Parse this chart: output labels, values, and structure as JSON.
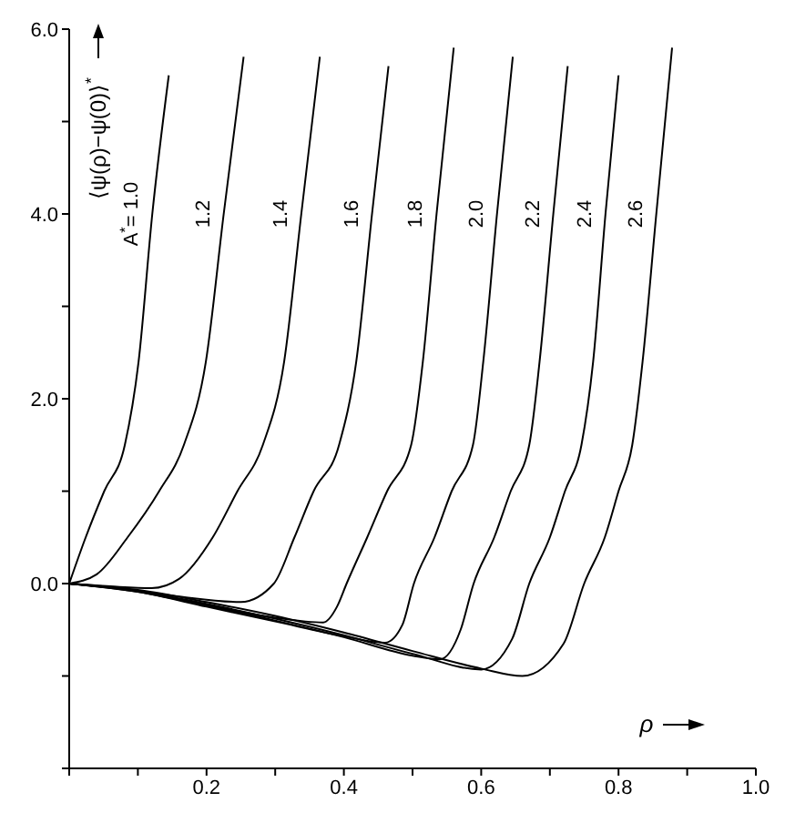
{
  "chart_data": {
    "type": "line",
    "xlabel": "ρ",
    "ylabel": "⟨ψ(ρ)−ψ(0)⟩$^{*}$",
    "xlim": [
      0,
      1.0
    ],
    "ylim": [
      -2,
      6
    ],
    "xticks": [
      {
        "value": 0,
        "label": null
      },
      {
        "value": 0.1,
        "label": null
      },
      0.2,
      {
        "value": 0.3,
        "label": null
      },
      0.4,
      {
        "value": 0.5,
        "label": null
      },
      0.6,
      {
        "value": 0.7,
        "label": null
      },
      0.8,
      {
        "value": 0.9,
        "label": null
      },
      {
        "value": 1.0,
        "label": "1.0"
      }
    ],
    "yticks": [
      {
        "value": -2,
        "label": null
      },
      {
        "value": -1,
        "label": null
      },
      {
        "value": 0,
        "label": "0.0"
      },
      {
        "value": 1,
        "label": null
      },
      {
        "value": 2,
        "label": "2.0"
      },
      {
        "value": 3,
        "label": null
      },
      {
        "value": 4,
        "label": "4.0"
      },
      {
        "value": 5,
        "label": null
      },
      {
        "value": 6,
        "label": "6.0"
      }
    ],
    "marker": "none",
    "line_style": "solid",
    "series": [
      {
        "name": "A$^{*}$= 1.0",
        "color": "#000000",
        "x": [
          0,
          0.024,
          0.051,
          0.081,
          0.101,
          0.121,
          0.145
        ],
        "values": [
          0,
          0.5,
          1,
          1.5,
          2.4,
          4,
          5.5
        ]
      },
      {
        "name": "1.2",
        "color": "#000000",
        "x": [
          0,
          0.04,
          0.085,
          0.131,
          0.167,
          0.199,
          0.225,
          0.254
        ],
        "values": [
          0,
          0.1,
          0.5,
          1,
          1.5,
          2.4,
          4,
          5.7
        ]
      },
      {
        "name": "1.4",
        "color": "#000000",
        "x": [
          0,
          0.06,
          0.12,
          0.16,
          0.209,
          0.245,
          0.282,
          0.313,
          0.338,
          0.365
        ],
        "values": [
          0,
          -0.03,
          -0.05,
          0.05,
          0.5,
          1,
          1.5,
          2.4,
          4,
          5.7
        ]
      },
      {
        "name": "1.6",
        "color": "#000000",
        "x": [
          0,
          0.08,
          0.16,
          0.25,
          0.298,
          0.328,
          0.356,
          0.393,
          0.418,
          0.441,
          0.465
        ],
        "values": [
          0,
          -0.06,
          -0.14,
          -0.2,
          0,
          0.5,
          1,
          1.5,
          2.4,
          4,
          5.6
        ]
      },
      {
        "name": "1.8",
        "color": "#000000",
        "x": [
          0,
          0.1,
          0.2,
          0.3,
          0.37,
          0.39,
          0.404,
          0.434,
          0.463,
          0.498,
          0.515,
          0.535,
          0.56
        ],
        "values": [
          0,
          -0.08,
          -0.23,
          -0.37,
          -0.42,
          -0.25,
          0,
          0.5,
          1,
          1.5,
          2.4,
          4,
          5.8
        ]
      },
      {
        "name": "2.0",
        "color": "#000000",
        "x": [
          0,
          0.1,
          0.2,
          0.3,
          0.4,
          0.46,
          0.485,
          0.502,
          0.532,
          0.557,
          0.588,
          0.603,
          0.623,
          0.646
        ],
        "values": [
          0,
          -0.09,
          -0.25,
          -0.41,
          -0.57,
          -0.64,
          -0.45,
          0,
          0.5,
          1,
          1.5,
          2.4,
          4,
          5.7
        ]
      },
      {
        "name": "2.2",
        "color": "#000000",
        "x": [
          0,
          0.1,
          0.2,
          0.3,
          0.4,
          0.5,
          0.54,
          0.57,
          0.589,
          0.619,
          0.643,
          0.67,
          0.685,
          0.705,
          0.726
        ],
        "values": [
          0,
          -0.09,
          -0.24,
          -0.4,
          -0.58,
          -0.78,
          -0.82,
          -0.5,
          0,
          0.5,
          1,
          1.5,
          2.4,
          4,
          5.6
        ]
      },
      {
        "name": "2.4",
        "color": "#000000",
        "x": [
          0,
          0.1,
          0.2,
          0.3,
          0.4,
          0.5,
          0.6,
          0.645,
          0.67,
          0.7,
          0.722,
          0.746,
          0.763,
          0.781,
          0.8
        ],
        "values": [
          0,
          -0.08,
          -0.22,
          -0.38,
          -0.56,
          -0.76,
          -0.93,
          -0.6,
          0,
          0.5,
          1,
          1.5,
          2.4,
          4,
          5.5
        ]
      },
      {
        "name": "2.6",
        "color": "#000000",
        "x": [
          0,
          0.1,
          0.2,
          0.3,
          0.4,
          0.5,
          0.6,
          0.66,
          0.72,
          0.75,
          0.78,
          0.8,
          0.82,
          0.835,
          0.855,
          0.878
        ],
        "values": [
          0,
          -0.07,
          -0.2,
          -0.35,
          -0.53,
          -0.73,
          -0.92,
          -1.0,
          -0.65,
          0,
          0.5,
          1,
          1.5,
          2.4,
          4,
          5.8
        ]
      }
    ]
  }
}
